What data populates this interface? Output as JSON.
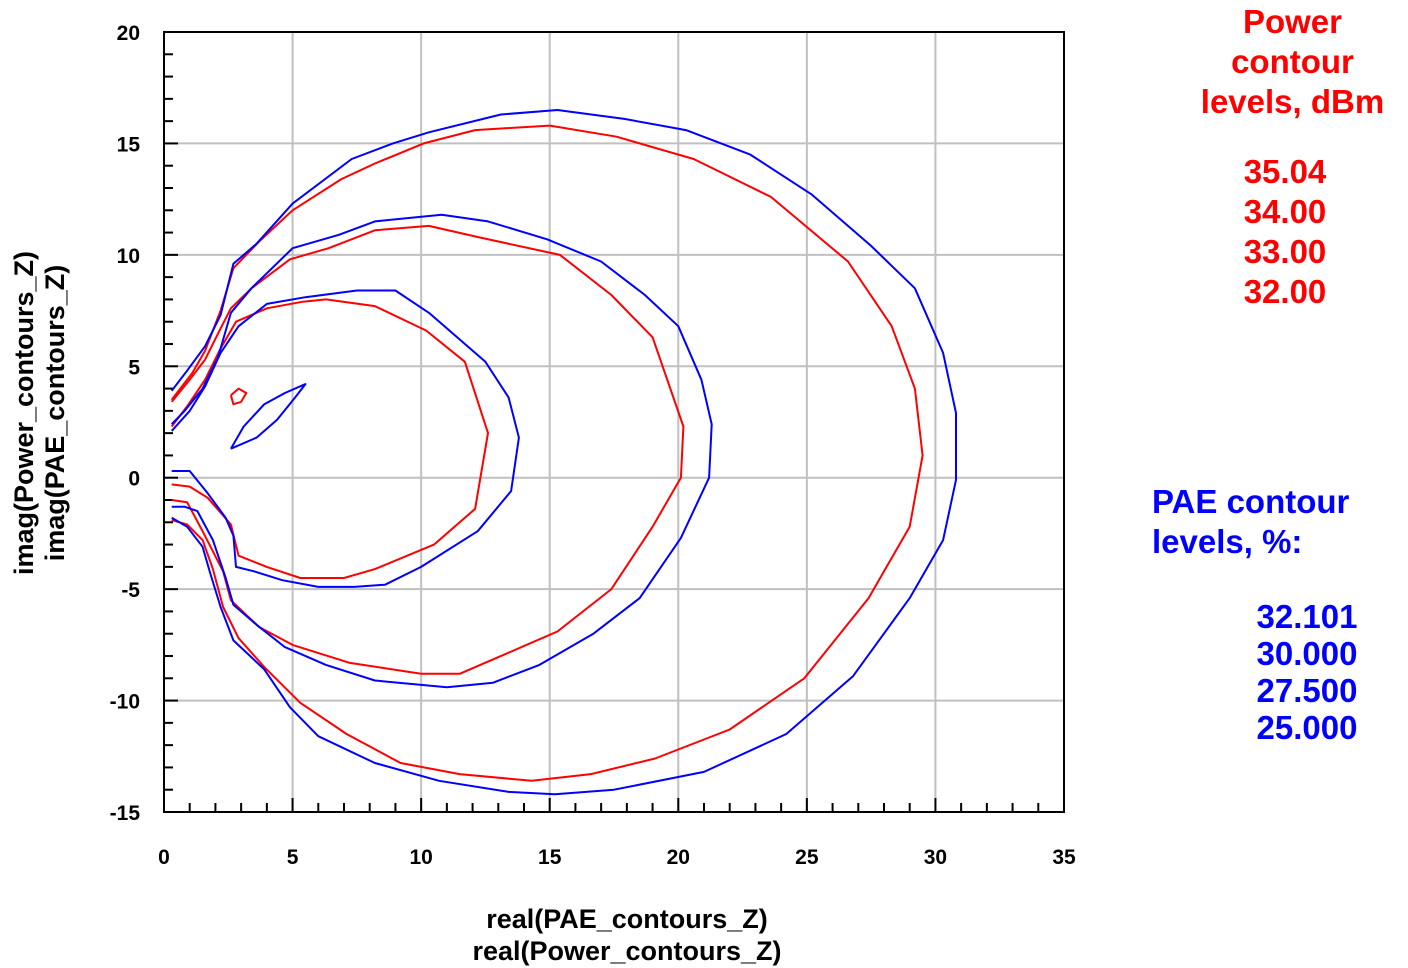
{
  "colors": {
    "power": "#ff0000",
    "pae": "#0000ff",
    "grid": "#c0c0c0",
    "axis": "#000000"
  },
  "chart_data": {
    "type": "line",
    "xlabel_lines": [
      "real(PAE_contours_Z)",
      "real(Power_contours_Z)"
    ],
    "ylabel_lines": [
      "imag(Power_contours_Z)",
      "imag(PAE_contours_Z)"
    ],
    "xlim": [
      0,
      35
    ],
    "ylim": [
      -15,
      20
    ],
    "xticks": [
      0,
      5,
      10,
      15,
      20,
      25,
      30,
      35
    ],
    "xtick_labels": [
      "0",
      "5",
      "10",
      "15",
      "20",
      "25",
      "30",
      "35"
    ],
    "yticks": [
      20,
      15,
      10,
      5,
      0,
      -5,
      -10,
      -15
    ],
    "ytick_labels": [
      "20",
      "15",
      "10",
      "5",
      "0",
      "-5",
      "-10",
      "-15"
    ],
    "grid": true,
    "series": [
      {
        "group": "power",
        "level": "35.04",
        "points": [
          [
            2.6,
            3.7
          ],
          [
            2.9,
            4.0
          ],
          [
            3.2,
            3.8
          ],
          [
            3.0,
            3.4
          ],
          [
            2.7,
            3.3
          ],
          [
            2.6,
            3.7
          ]
        ]
      },
      {
        "group": "power",
        "level": "34.00",
        "points": [
          [
            0.3,
            2.3
          ],
          [
            0.9,
            3.2
          ],
          [
            1.6,
            4.4
          ],
          [
            2.2,
            5.8
          ],
          [
            2.8,
            7.0
          ],
          [
            4.0,
            7.6
          ],
          [
            5.4,
            7.9
          ],
          [
            6.3,
            8.0
          ],
          [
            8.2,
            7.7
          ],
          [
            10.2,
            6.6
          ],
          [
            11.7,
            5.2
          ],
          [
            12.6,
            2.0
          ],
          [
            12.1,
            -1.4
          ],
          [
            10.5,
            -3.0
          ],
          [
            8.2,
            -4.1
          ],
          [
            7.0,
            -4.5
          ],
          [
            5.3,
            -4.5
          ],
          [
            4.0,
            -4.0
          ],
          [
            2.9,
            -3.5
          ],
          [
            2.6,
            -2.1
          ],
          [
            1.7,
            -0.9
          ],
          [
            1.0,
            -0.4
          ],
          [
            0.3,
            -0.3
          ]
        ]
      },
      {
        "group": "power",
        "level": "33.00",
        "points": [
          [
            0.3,
            3.4
          ],
          [
            1.0,
            4.4
          ],
          [
            1.6,
            5.3
          ],
          [
            2.2,
            6.7
          ],
          [
            2.6,
            7.6
          ],
          [
            3.4,
            8.5
          ],
          [
            4.9,
            9.8
          ],
          [
            6.4,
            10.3
          ],
          [
            8.2,
            11.1
          ],
          [
            10.3,
            11.3
          ],
          [
            12.2,
            10.8
          ],
          [
            15.4,
            10.0
          ],
          [
            17.4,
            8.2
          ],
          [
            19.0,
            6.3
          ],
          [
            20.2,
            2.3
          ],
          [
            20.1,
            0.0
          ],
          [
            19.0,
            -2.2
          ],
          [
            17.4,
            -5.0
          ],
          [
            15.3,
            -6.9
          ],
          [
            13.3,
            -7.9
          ],
          [
            11.5,
            -8.8
          ],
          [
            10.0,
            -8.8
          ],
          [
            7.2,
            -8.3
          ],
          [
            5.0,
            -7.5
          ],
          [
            3.7,
            -6.7
          ],
          [
            2.6,
            -5.5
          ],
          [
            2.3,
            -4.2
          ],
          [
            1.5,
            -2.4
          ],
          [
            0.9,
            -1.1
          ],
          [
            0.3,
            -1.0
          ]
        ]
      },
      {
        "group": "power",
        "level": "32.00",
        "points": [
          [
            0.3,
            3.5
          ],
          [
            1.1,
            4.7
          ],
          [
            1.6,
            5.7
          ],
          [
            2.2,
            7.5
          ],
          [
            2.7,
            9.4
          ],
          [
            3.7,
            10.6
          ],
          [
            5.0,
            12.0
          ],
          [
            6.9,
            13.4
          ],
          [
            8.2,
            14.1
          ],
          [
            10.1,
            15.0
          ],
          [
            12.1,
            15.6
          ],
          [
            15.0,
            15.8
          ],
          [
            17.6,
            15.3
          ],
          [
            20.6,
            14.3
          ],
          [
            23.6,
            12.6
          ],
          [
            26.6,
            9.7
          ],
          [
            28.3,
            6.8
          ],
          [
            29.2,
            4.0
          ],
          [
            29.5,
            1.0
          ],
          [
            29.0,
            -2.2
          ],
          [
            27.4,
            -5.4
          ],
          [
            24.9,
            -9.0
          ],
          [
            22.0,
            -11.3
          ],
          [
            19.1,
            -12.6
          ],
          [
            16.6,
            -13.3
          ],
          [
            14.3,
            -13.6
          ],
          [
            11.5,
            -13.3
          ],
          [
            9.2,
            -12.8
          ],
          [
            7.1,
            -11.5
          ],
          [
            5.3,
            -10.1
          ],
          [
            3.9,
            -8.5
          ],
          [
            2.9,
            -7.2
          ],
          [
            2.3,
            -5.8
          ],
          [
            1.9,
            -4.1
          ],
          [
            1.5,
            -2.8
          ],
          [
            0.9,
            -2.1
          ],
          [
            0.3,
            -1.9
          ]
        ]
      },
      {
        "group": "pae",
        "level": "32.101",
        "points": [
          [
            2.6,
            1.3
          ],
          [
            3.6,
            1.8
          ],
          [
            4.4,
            2.6
          ],
          [
            5.1,
            3.6
          ],
          [
            5.5,
            4.2
          ],
          [
            4.7,
            3.8
          ],
          [
            3.9,
            3.3
          ],
          [
            3.1,
            2.3
          ],
          [
            2.6,
            1.3
          ]
        ]
      },
      {
        "group": "pae",
        "level": "30.000",
        "points": [
          [
            0.3,
            2.1
          ],
          [
            1.0,
            3.0
          ],
          [
            1.6,
            4.1
          ],
          [
            2.2,
            5.6
          ],
          [
            2.9,
            6.8
          ],
          [
            4.0,
            7.8
          ],
          [
            5.5,
            8.1
          ],
          [
            7.5,
            8.4
          ],
          [
            9.0,
            8.4
          ],
          [
            10.3,
            7.4
          ],
          [
            12.5,
            5.2
          ],
          [
            13.4,
            3.6
          ],
          [
            13.8,
            1.8
          ],
          [
            13.5,
            -0.6
          ],
          [
            12.2,
            -2.4
          ],
          [
            10.0,
            -4.0
          ],
          [
            8.6,
            -4.8
          ],
          [
            7.4,
            -4.9
          ],
          [
            6.0,
            -4.9
          ],
          [
            4.6,
            -4.6
          ],
          [
            3.5,
            -4.2
          ],
          [
            2.8,
            -4.0
          ],
          [
            2.7,
            -2.6
          ],
          [
            2.4,
            -1.8
          ],
          [
            1.7,
            -0.7
          ],
          [
            1.0,
            0.3
          ],
          [
            0.3,
            0.3
          ]
        ]
      },
      {
        "group": "pae",
        "level": "27.500",
        "points": [
          [
            0.3,
            2.4
          ],
          [
            0.8,
            3.0
          ],
          [
            1.5,
            4.0
          ],
          [
            2.1,
            5.4
          ],
          [
            2.6,
            7.4
          ],
          [
            3.4,
            8.5
          ],
          [
            5.0,
            10.3
          ],
          [
            6.8,
            10.9
          ],
          [
            8.2,
            11.5
          ],
          [
            10.8,
            11.8
          ],
          [
            12.6,
            11.5
          ],
          [
            14.9,
            10.7
          ],
          [
            17.0,
            9.7
          ],
          [
            18.7,
            8.2
          ],
          [
            20.0,
            6.8
          ],
          [
            20.9,
            4.4
          ],
          [
            21.3,
            2.4
          ],
          [
            21.2,
            0.0
          ],
          [
            20.1,
            -2.7
          ],
          [
            18.5,
            -5.4
          ],
          [
            16.7,
            -7.0
          ],
          [
            14.6,
            -8.4
          ],
          [
            12.8,
            -9.2
          ],
          [
            11.0,
            -9.4
          ],
          [
            8.2,
            -9.1
          ],
          [
            6.3,
            -8.4
          ],
          [
            4.7,
            -7.6
          ],
          [
            3.6,
            -6.6
          ],
          [
            2.7,
            -5.7
          ],
          [
            2.4,
            -4.5
          ],
          [
            1.9,
            -2.8
          ],
          [
            1.3,
            -1.5
          ],
          [
            0.8,
            -1.3
          ],
          [
            0.3,
            -1.3
          ]
        ]
      },
      {
        "group": "pae",
        "level": "25.000",
        "points": [
          [
            0.3,
            3.9
          ],
          [
            0.9,
            4.8
          ],
          [
            1.6,
            5.9
          ],
          [
            2.2,
            7.3
          ],
          [
            2.7,
            9.6
          ],
          [
            3.6,
            10.5
          ],
          [
            5.0,
            12.3
          ],
          [
            7.3,
            14.3
          ],
          [
            8.9,
            15.0
          ],
          [
            10.3,
            15.5
          ],
          [
            13.1,
            16.3
          ],
          [
            15.3,
            16.5
          ],
          [
            17.9,
            16.1
          ],
          [
            20.3,
            15.6
          ],
          [
            22.8,
            14.5
          ],
          [
            25.2,
            12.7
          ],
          [
            27.5,
            10.4
          ],
          [
            29.2,
            8.5
          ],
          [
            30.3,
            5.6
          ],
          [
            30.8,
            2.9
          ],
          [
            30.8,
            -0.1
          ],
          [
            30.3,
            -2.8
          ],
          [
            29.0,
            -5.4
          ],
          [
            26.8,
            -8.9
          ],
          [
            24.2,
            -11.5
          ],
          [
            21.0,
            -13.2
          ],
          [
            17.5,
            -14.0
          ],
          [
            15.2,
            -14.2
          ],
          [
            13.4,
            -14.1
          ],
          [
            10.7,
            -13.6
          ],
          [
            8.2,
            -12.8
          ],
          [
            6.0,
            -11.6
          ],
          [
            4.9,
            -10.3
          ],
          [
            3.9,
            -8.6
          ],
          [
            2.7,
            -7.3
          ],
          [
            2.2,
            -5.8
          ],
          [
            1.8,
            -4.3
          ],
          [
            1.5,
            -3.1
          ],
          [
            0.9,
            -2.2
          ],
          [
            0.3,
            -1.8
          ]
        ]
      }
    ]
  },
  "legend_power": {
    "title_lines": [
      "Power",
      "contour",
      "levels, dBm"
    ],
    "values": [
      "35.04",
      "34.00",
      "33.00",
      "32.00"
    ]
  },
  "legend_pae": {
    "title_lines": [
      "PAE contour",
      "levels, %:"
    ],
    "values": [
      "32.101",
      "30.000",
      "27.500",
      "25.000"
    ]
  }
}
